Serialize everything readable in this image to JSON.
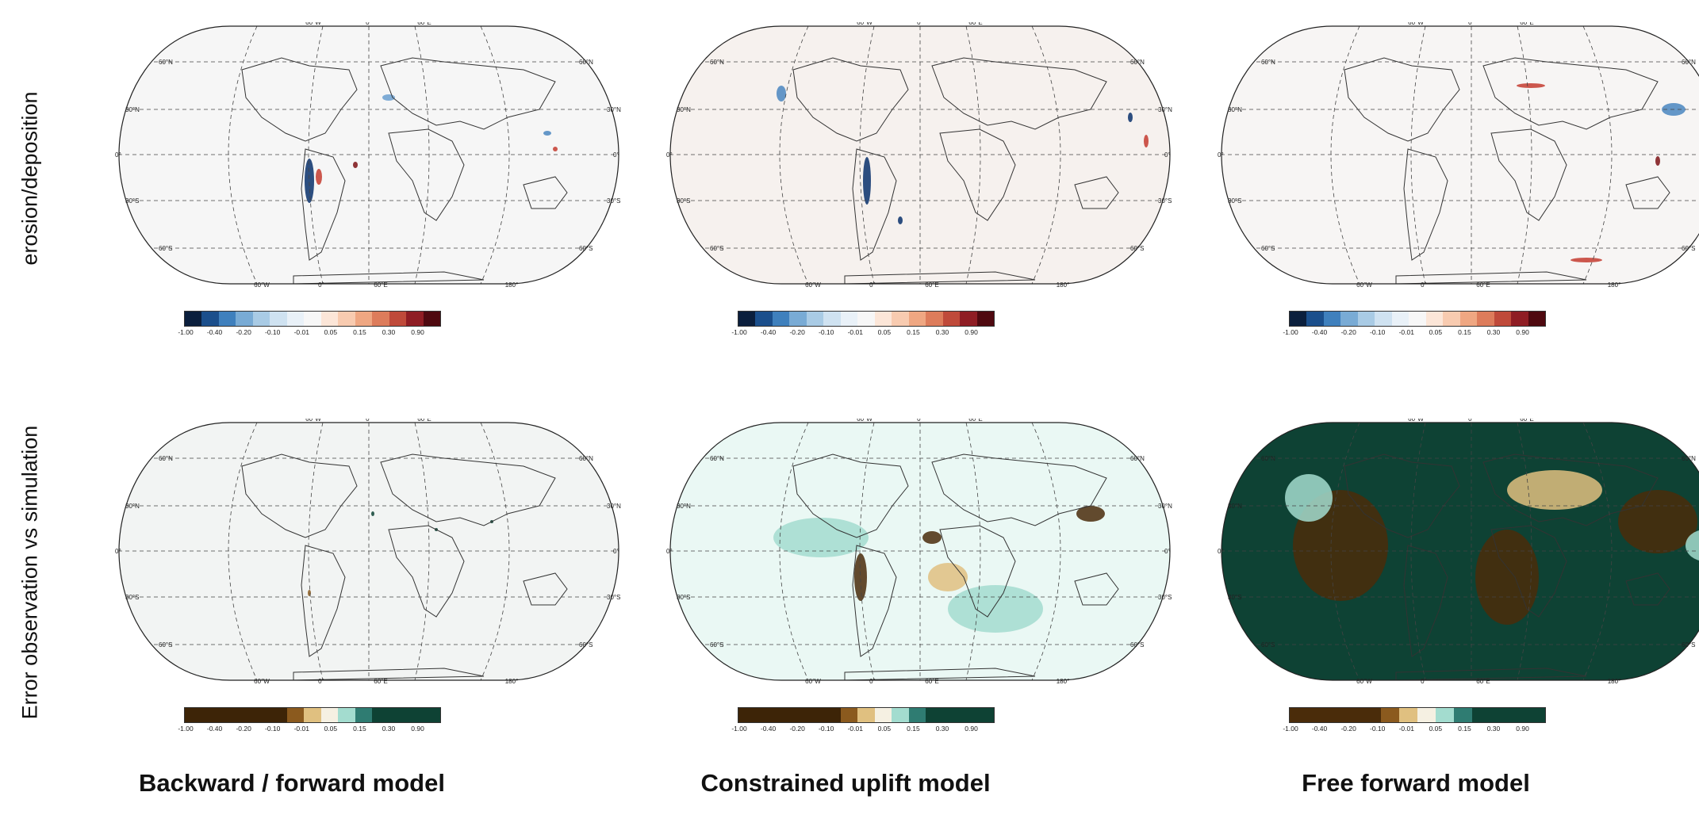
{
  "row_labels": [
    "erosion/deposition",
    "Error observation vs simulation"
  ],
  "column_titles": [
    "Backward / forward model",
    "Constrained uplift model",
    "Free forward model"
  ],
  "map_labels": {
    "top_lon": [
      "60°W",
      "0°",
      "60°E"
    ],
    "bottom_lon": [
      "60°W",
      "0°",
      "60°E",
      "180°"
    ],
    "lat_left": [
      "60°N",
      "30°N",
      "0°",
      "30°S",
      "60°S"
    ],
    "lat_right": [
      "60°N",
      "30°N",
      "0°",
      "30°S",
      "60°S"
    ]
  },
  "colorbars": {
    "erosion": {
      "colors": [
        "#0b1f3d",
        "#1b4f8c",
        "#3f80bd",
        "#79abd5",
        "#a9cbe5",
        "#cfe2f1",
        "#e9f1f8",
        "#f7f7f7",
        "#fce6d8",
        "#f8cbb0",
        "#efa782",
        "#dd7c5b",
        "#bf4a3a",
        "#8f1d24",
        "#4f0910"
      ],
      "ticks": [
        "-1.00",
        "-0.40",
        "-0.20",
        "-0.10",
        "-0.01",
        "0.05",
        "0.15",
        "0.30",
        "0.90"
      ]
    },
    "error_a": {
      "colors": [
        "#3d2407",
        "#3d2407",
        "#3d2407",
        "#3d2407",
        "#3d2407",
        "#3d2407",
        "#8b5a1e",
        "#e0c080",
        "#f5f0e2",
        "#a3dccf",
        "#2f7c72",
        "#0e4234",
        "#0e4234",
        "#0e4234",
        "#0e4234"
      ],
      "ticks": [
        "-1.00",
        "-0.40",
        "-0.20",
        "-0.10",
        "-0.01",
        "0.05",
        "0.15",
        "0.30",
        "0.90"
      ]
    },
    "error_c": {
      "colors": [
        "#4a2c0a",
        "#4a2c0a",
        "#4a2c0a",
        "#4a2c0a",
        "#4a2c0a",
        "#8b5a1e",
        "#e0c080",
        "#f5f0e2",
        "#a3dccf",
        "#2f7c72",
        "#0e4234",
        "#0e4234",
        "#0e4234",
        "#0e4234"
      ],
      "ticks": [
        "-1.00",
        "-0.40",
        "-0.20",
        "-0.10",
        "-0.01",
        "0.05",
        "0.15",
        "0.30",
        "0.90"
      ]
    }
  },
  "panels": [
    {
      "id": "p11",
      "fill": "#f6f6f6",
      "spots": [
        [
          "#08306b",
          250,
          200,
          6,
          28
        ],
        [
          "#c43b2f",
          262,
          195,
          4,
          10
        ],
        [
          "#7d1215",
          308,
          180,
          3,
          4
        ],
        [
          "#4a86c0",
          550,
          140,
          5,
          3
        ],
        [
          "#c43b2f",
          560,
          160,
          3,
          3
        ],
        [
          "#6a9fd0",
          350,
          95,
          8,
          4
        ]
      ]
    },
    {
      "id": "p12",
      "fill": "#f6f1ee",
      "spots": [
        [
          "#08306b",
          258,
          200,
          5,
          30
        ],
        [
          "#08306b",
          590,
          120,
          3,
          6
        ],
        [
          "#c43b2f",
          610,
          150,
          3,
          8
        ],
        [
          "#4a86c0",
          150,
          90,
          6,
          10
        ],
        [
          "#08306b",
          300,
          250,
          3,
          5
        ]
      ]
    },
    {
      "id": "p13",
      "fill": "#f7f5f4",
      "spots": [
        [
          "#7d1215",
          560,
          175,
          3,
          6
        ],
        [
          "#7d1215",
          620,
          130,
          2,
          8
        ],
        [
          "#c43b2f",
          400,
          80,
          18,
          3
        ],
        [
          "#c43b2f",
          470,
          300,
          20,
          3
        ],
        [
          "#4a86c0",
          580,
          110,
          15,
          8
        ]
      ]
    },
    {
      "id": "p21",
      "fill": "#f2f4f3",
      "spots": [
        [
          "#0e4234",
          330,
          120,
          2,
          3
        ],
        [
          "#0e4234",
          410,
          140,
          2,
          2
        ],
        [
          "#8b5a1e",
          250,
          220,
          2,
          4
        ],
        [
          "#0e4234",
          480,
          130,
          2,
          2
        ]
      ]
    },
    {
      "id": "p22",
      "fill": "#eaf8f4",
      "spots": [
        [
          "#4a2c0a",
          250,
          200,
          8,
          30
        ],
        [
          "#4a2c0a",
          340,
          150,
          12,
          8
        ],
        [
          "#e0c080",
          360,
          200,
          25,
          18
        ],
        [
          "#4a2c0a",
          540,
          120,
          18,
          10
        ],
        [
          "#a3dccf",
          200,
          150,
          60,
          25
        ],
        [
          "#a3dccf",
          420,
          240,
          60,
          30
        ]
      ]
    },
    {
      "id": "p23",
      "fill": "#0e4234",
      "spots": [
        [
          "#4a2c0a",
          160,
          160,
          60,
          70
        ],
        [
          "#4a2c0a",
          370,
          200,
          40,
          60
        ],
        [
          "#e0c080",
          430,
          90,
          60,
          25
        ],
        [
          "#4a2c0a",
          560,
          130,
          50,
          40
        ],
        [
          "#a3dccf",
          120,
          100,
          30,
          30
        ],
        [
          "#a3dccf",
          620,
          160,
          25,
          20
        ]
      ]
    }
  ]
}
